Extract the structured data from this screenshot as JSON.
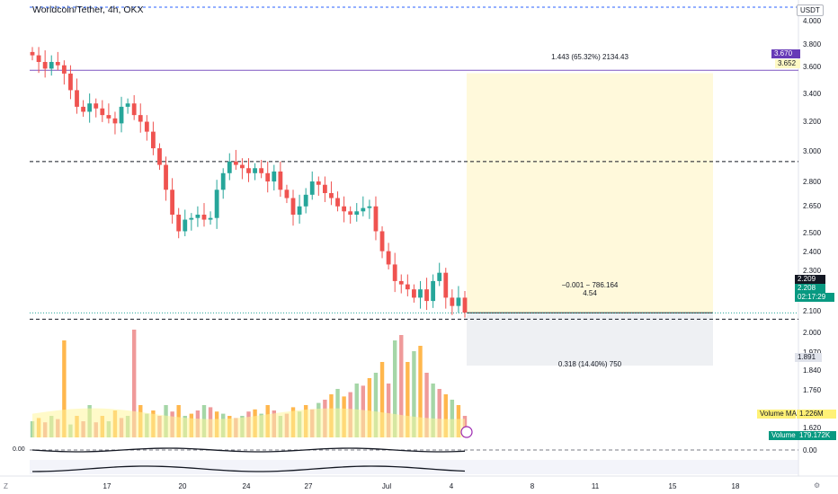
{
  "header": {
    "symbol_title": "Worldcoin/Tether, 4h, OKX",
    "currency": "USDT"
  },
  "price_axis": {
    "ticks": [
      "4.000",
      "3.800",
      "3.600",
      "3.400",
      "3.200",
      "3.000",
      "2.800",
      "2.650",
      "2.500",
      "2.400",
      "2.300",
      "2.100",
      "2.000",
      "1.970",
      "1.840",
      "1.760",
      "1.620",
      "0.00"
    ]
  },
  "time_axis": {
    "ticks": [
      "17",
      "20",
      "24",
      "27",
      "Jul",
      "4",
      "8",
      "11",
      "15",
      "18"
    ]
  },
  "corner_letters": [
    "Z",
    "0.00",
    "⚙"
  ],
  "price_tags": {
    "target": {
      "value": "3.670",
      "color": "#673ab7",
      "text_color": "#ffffff"
    },
    "target_top": {
      "value": "3.652",
      "color": "#fff9c4",
      "text_color": "#131722"
    },
    "last": {
      "value": "2.209",
      "color": "#131722",
      "text_color": "#ffffff"
    },
    "current": {
      "value": "2.208",
      "color": "#089981",
      "text_color": "#ffffff"
    },
    "countdown": {
      "value": "02:17:29",
      "color": "#089981",
      "text_color": "#ffffff"
    },
    "stop": {
      "value": "1.891",
      "color": "#e0e3eb",
      "text_color": "#131722"
    },
    "volume_ma": {
      "label": "Volume MA",
      "value": "1.226M",
      "color": "#fff176"
    },
    "volume": {
      "label": "Volume",
      "value": "179.172K",
      "color": "#089981"
    }
  },
  "position_tool": {
    "profit_label": "1.443 (65.32%) 2134.43",
    "entry_label_line1": "−0.001 − 786.164",
    "entry_label_line2": "4.54",
    "stop_label": "0.318 (14.40%) 750"
  },
  "colors": {
    "up": "#26a69a",
    "down": "#ef5350",
    "profit_zone": "#fff9db",
    "loss_zone": "#eef0f3"
  },
  "chart_data": {
    "type": "candlestick",
    "interval": "4h",
    "ylim": [
      1.55,
      4.05
    ],
    "levels": [
      {
        "price": 3.67,
        "style": "solid",
        "color": "#7e57c2"
      },
      {
        "price": 3.12,
        "style": "dashed"
      },
      {
        "price": 2.17,
        "style": "dashed"
      },
      {
        "price": 2.208,
        "style": "dotted",
        "color": "#26a69a"
      }
    ],
    "ohlc_close_path": [
      3.76,
      3.72,
      3.68,
      3.72,
      3.7,
      3.65,
      3.55,
      3.45,
      3.42,
      3.47,
      3.44,
      3.4,
      3.38,
      3.35,
      3.45,
      3.47,
      3.4,
      3.36,
      3.3,
      3.2,
      3.1,
      2.95,
      2.8,
      2.7,
      2.77,
      2.78,
      2.8,
      2.77,
      2.78,
      2.95,
      3.05,
      3.12,
      3.1,
      3.08,
      3.05,
      3.08,
      3.05,
      3.0,
      3.06,
      2.95,
      2.9,
      2.8,
      2.85,
      2.92,
      3.0,
      2.98,
      2.93,
      2.9,
      2.85,
      2.82,
      2.8,
      2.82,
      2.84,
      2.85,
      2.7,
      2.58,
      2.5,
      2.4,
      2.38,
      2.35,
      2.3,
      2.35,
      2.28,
      2.4,
      2.45,
      2.3,
      2.25,
      2.3,
      2.21
    ],
    "volume_profile": [
      0.15,
      0.18,
      0.14,
      0.2,
      0.17,
      0.9,
      0.12,
      0.2,
      0.15,
      0.3,
      0.14,
      0.2,
      0.15,
      0.25,
      0.18,
      0.2,
      1.0,
      0.3,
      0.22,
      0.25,
      0.2,
      0.3,
      0.24,
      0.3,
      0.2,
      0.22,
      0.25,
      0.3,
      0.28,
      0.24,
      0.22,
      0.2,
      0.18,
      0.2,
      0.24,
      0.26,
      0.22,
      0.3,
      0.25,
      0.2,
      0.22,
      0.28,
      0.24,
      0.3,
      0.26,
      0.32,
      0.35,
      0.4,
      0.45,
      0.38,
      0.42,
      0.5,
      0.48,
      0.55,
      0.6,
      0.7,
      0.5,
      0.9,
      0.95,
      0.7,
      0.8,
      0.85,
      0.6,
      0.5,
      0.45,
      0.4,
      0.35,
      0.3,
      0.2
    ]
  }
}
